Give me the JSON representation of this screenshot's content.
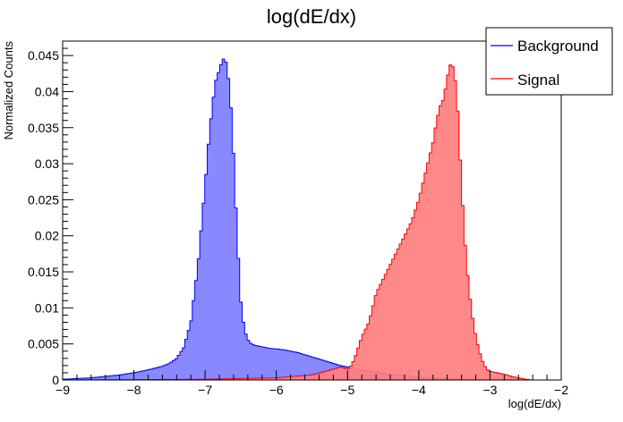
{
  "chart_data": {
    "type": "area",
    "title": "log(dE/dx)",
    "xlabel": "log(dE/dx)",
    "ylabel": "Normalized Counts",
    "xlim": [
      -9,
      -2
    ],
    "ylim": [
      0,
      0.047
    ],
    "x_ticks": [
      -9,
      -8,
      -7,
      -6,
      -5,
      -4,
      -3,
      -2
    ],
    "x_tick_labels": [
      "−9",
      "−8",
      "−7",
      "−6",
      "−5",
      "−4",
      "−3",
      "−2"
    ],
    "y_ticks": [
      0,
      0.005,
      0.01,
      0.015,
      0.02,
      0.025,
      0.03,
      0.035,
      0.04,
      0.045
    ],
    "y_tick_labels": [
      "0",
      "0.005",
      "0.01",
      "0.015",
      "0.02",
      "0.025",
      "0.03",
      "0.035",
      "0.04",
      "0.045"
    ],
    "legend_position": "top-right",
    "grid": false,
    "series": [
      {
        "name": "Background",
        "line_color": "#0000ff",
        "fill_color": "#7f7fff",
        "x": [
          -9.0,
          -8.6,
          -8.2,
          -8.0,
          -7.8,
          -7.6,
          -7.5,
          -7.4,
          -7.3,
          -7.2,
          -7.1,
          -7.0,
          -6.95,
          -6.9,
          -6.85,
          -6.8,
          -6.75,
          -6.7,
          -6.65,
          -6.6,
          -6.55,
          -6.5,
          -6.45,
          -6.4,
          -6.35,
          -6.3,
          -6.2,
          -6.1,
          -6.0,
          -5.9,
          -5.8,
          -5.7,
          -5.6,
          -5.5,
          -5.4,
          -5.3,
          -5.2,
          -5.1,
          -5.0,
          -4.9,
          -4.8,
          -4.6,
          -4.4,
          -4.2,
          -4.0,
          -3.8,
          -3.6,
          -3.4,
          -3.2,
          -3.0,
          -2.8,
          -2.6,
          -2.4,
          -2.2,
          -2.0
        ],
        "y": [
          0.0001,
          0.0003,
          0.0007,
          0.001,
          0.0014,
          0.0019,
          0.0023,
          0.003,
          0.0045,
          0.008,
          0.016,
          0.027,
          0.033,
          0.038,
          0.0415,
          0.043,
          0.0446,
          0.044,
          0.04,
          0.031,
          0.02,
          0.011,
          0.007,
          0.0056,
          0.005,
          0.0048,
          0.0046,
          0.0044,
          0.0043,
          0.0042,
          0.004,
          0.0038,
          0.0035,
          0.0032,
          0.0029,
          0.0026,
          0.0023,
          0.002,
          0.0018,
          0.0016,
          0.0014,
          0.0011,
          0.0008,
          0.0006,
          0.0004,
          0.0003,
          0.0002,
          0.0001,
          5e-05,
          2e-05,
          0.0,
          0.0,
          0.0,
          0.0,
          0.0
        ]
      },
      {
        "name": "Signal",
        "line_color": "#ff0000",
        "fill_color": "#ff7f7f",
        "x": [
          -9.0,
          -7.0,
          -6.0,
          -5.5,
          -5.2,
          -5.1,
          -5.0,
          -4.95,
          -4.9,
          -4.85,
          -4.8,
          -4.75,
          -4.7,
          -4.65,
          -4.6,
          -4.5,
          -4.4,
          -4.3,
          -4.2,
          -4.1,
          -4.0,
          -3.95,
          -3.9,
          -3.85,
          -3.8,
          -3.75,
          -3.7,
          -3.65,
          -3.6,
          -3.55,
          -3.5,
          -3.45,
          -3.4,
          -3.35,
          -3.3,
          -3.25,
          -3.2,
          -3.15,
          -3.1,
          -3.05,
          -3.0,
          -2.9,
          -2.8,
          -2.7,
          -2.6,
          -2.5,
          -2.4,
          -2.0
        ],
        "y": [
          0.0,
          0.0001,
          0.0003,
          0.0007,
          0.0015,
          0.0018,
          0.0015,
          0.002,
          0.003,
          0.0045,
          0.006,
          0.007,
          0.008,
          0.01,
          0.012,
          0.014,
          0.016,
          0.018,
          0.02,
          0.022,
          0.025,
          0.027,
          0.029,
          0.031,
          0.033,
          0.036,
          0.038,
          0.039,
          0.042,
          0.044,
          0.043,
          0.037,
          0.027,
          0.019,
          0.013,
          0.009,
          0.006,
          0.004,
          0.0025,
          0.0015,
          0.0012,
          0.001,
          0.0008,
          0.0005,
          0.0003,
          0.0001,
          0.0,
          0.0
        ]
      }
    ]
  }
}
